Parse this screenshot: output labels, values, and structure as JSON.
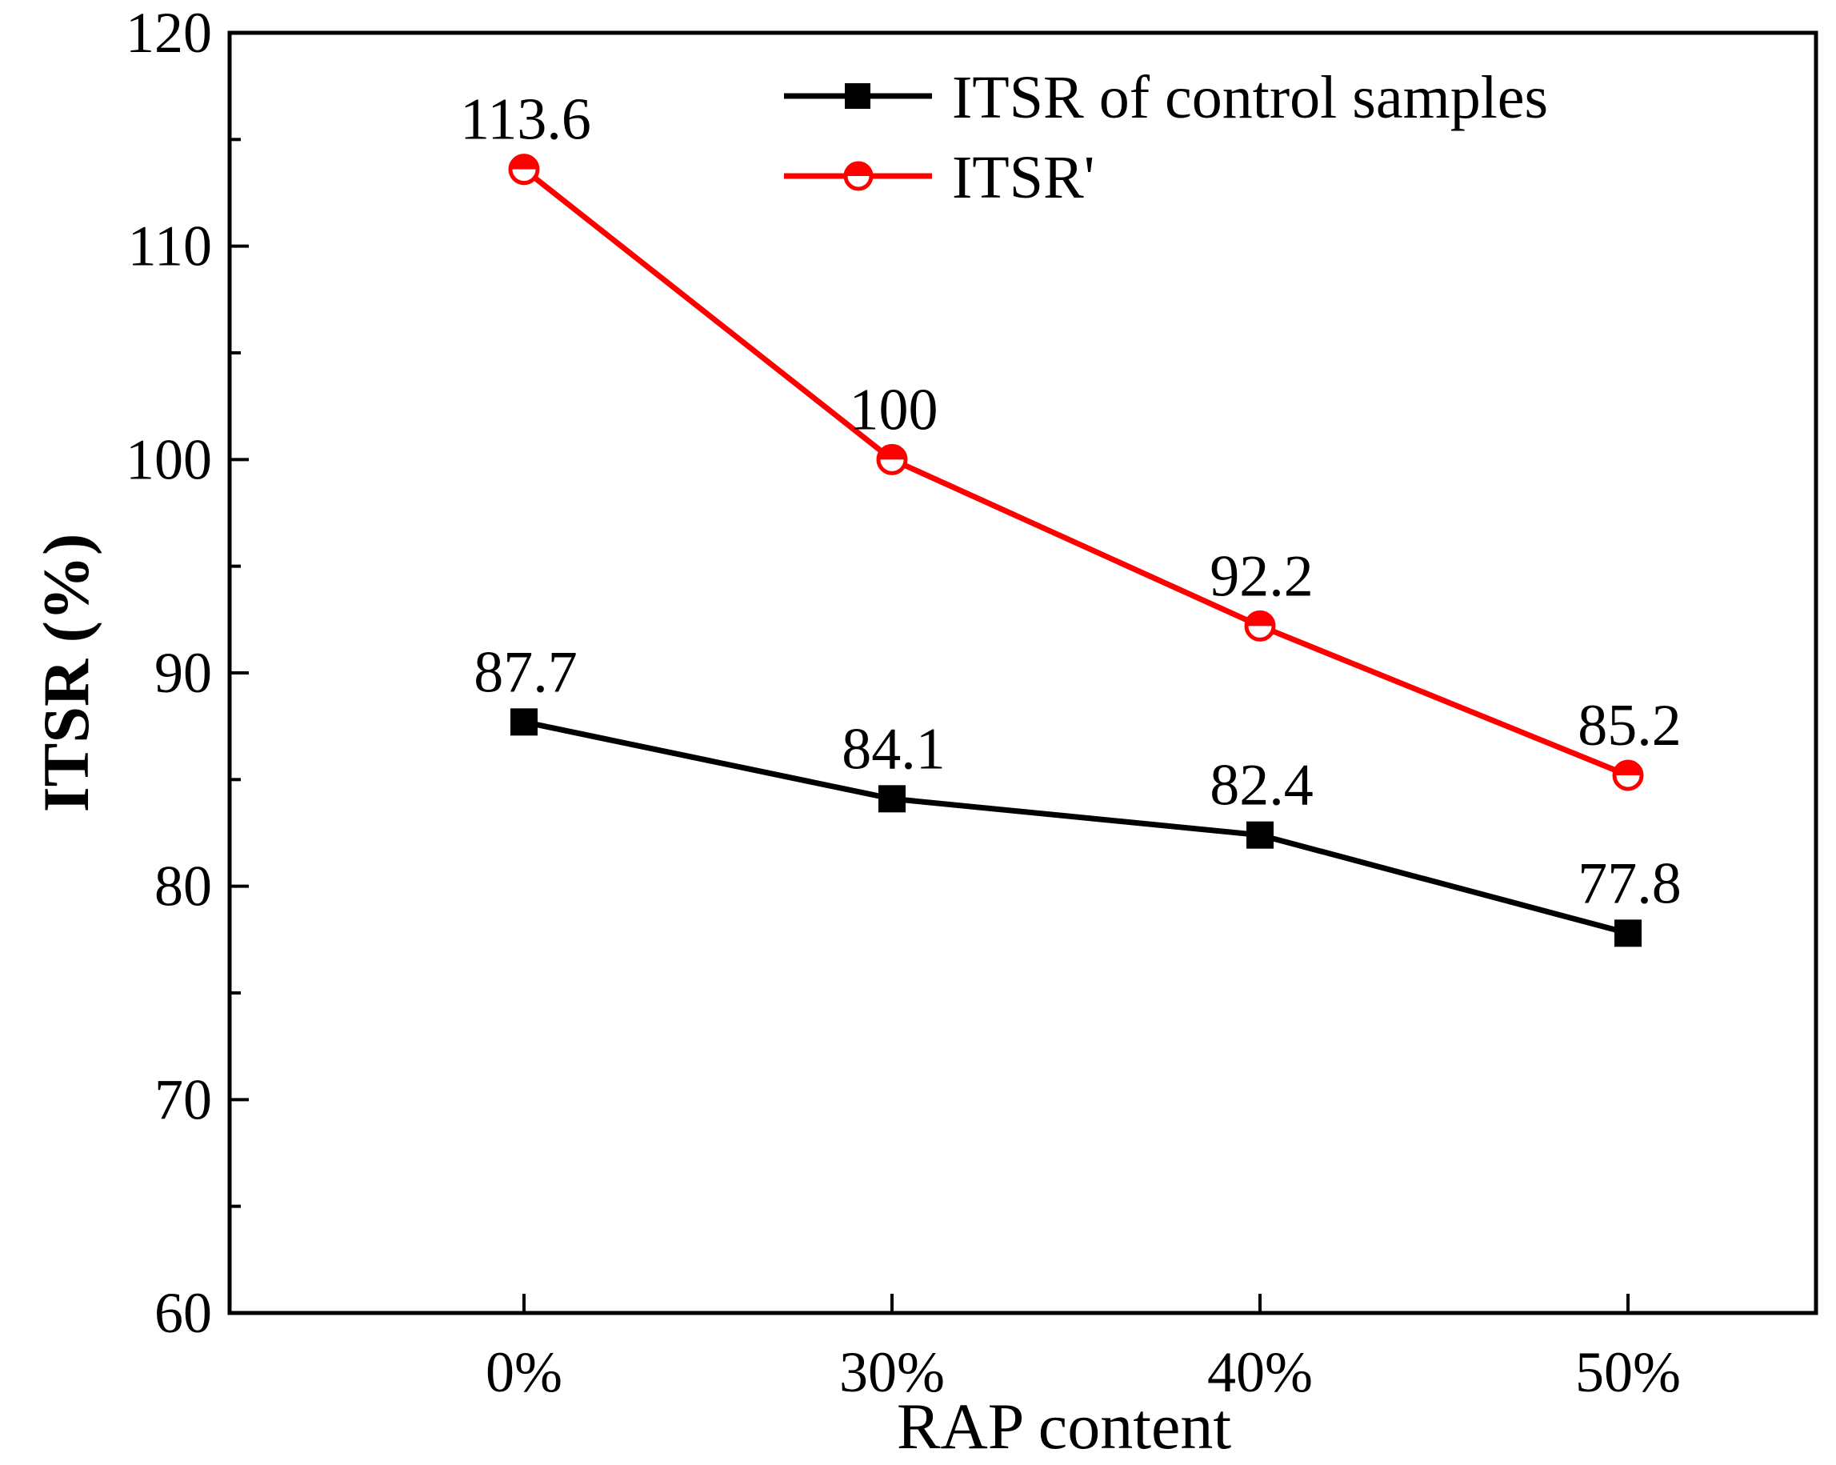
{
  "chart_data": {
    "type": "line",
    "title": "",
    "xlabel": "RAP content",
    "ylabel": "ITSR (%)",
    "categories": [
      "0%",
      "30%",
      "40%",
      "50%"
    ],
    "ylim": [
      60,
      120
    ],
    "yticks": [
      60,
      70,
      80,
      90,
      100,
      110,
      120
    ],
    "ytick_labels": [
      "60",
      "70",
      "80",
      "90",
      "100",
      "110",
      "120"
    ],
    "grid": false,
    "legend_position": "top-right",
    "series": [
      {
        "name": "ITSR of control samples",
        "color": "#000000",
        "marker": "square",
        "values": [
          87.7,
          84.1,
          82.4,
          77.8
        ],
        "labels": [
          "87.7",
          "84.1",
          "82.4",
          "77.8"
        ]
      },
      {
        "name": "ITSR'",
        "color": "#ff0000",
        "marker": "half-filled-circle",
        "values": [
          113.6,
          100,
          92.2,
          85.2
        ],
        "labels": [
          "113.6",
          "100",
          "92.2",
          "85.2"
        ]
      }
    ]
  }
}
